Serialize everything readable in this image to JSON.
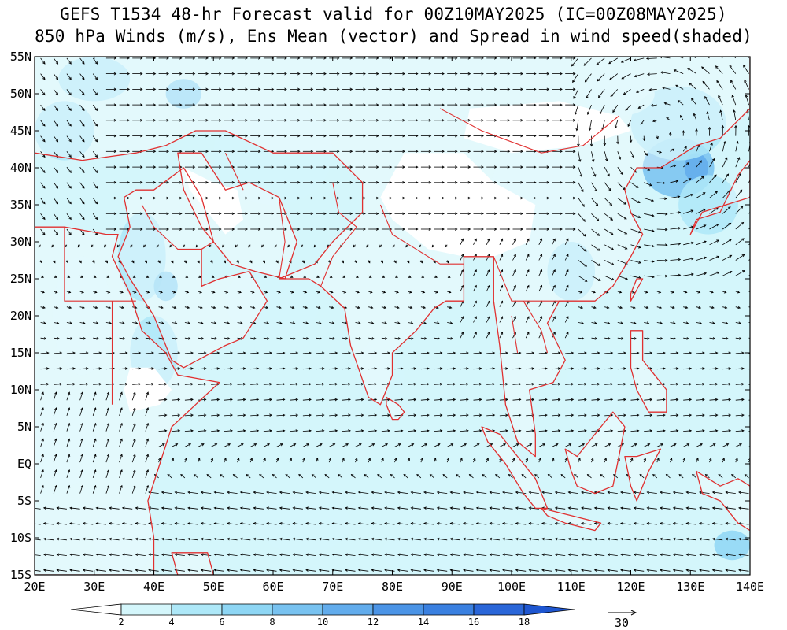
{
  "title_line1": "GEFS T1534 48-hr Forecast valid for 00Z10MAY2025 (IC=00Z08MAY2025)",
  "title_line2": "850 hPa Winds (m/s), Ens Mean (vector) and Spread in wind speed(shaded)",
  "map": {
    "lon_range": [
      20,
      140
    ],
    "lat_range": [
      -15,
      55
    ],
    "lon_labels": [
      {
        "lon": 20,
        "text": "20E"
      },
      {
        "lon": 30,
        "text": "30E"
      },
      {
        "lon": 40,
        "text": "40E"
      },
      {
        "lon": 50,
        "text": "50E"
      },
      {
        "lon": 60,
        "text": "60E"
      },
      {
        "lon": 70,
        "text": "70E"
      },
      {
        "lon": 80,
        "text": "80E"
      },
      {
        "lon": 90,
        "text": "90E"
      },
      {
        "lon": 100,
        "text": "100E"
      },
      {
        "lon": 110,
        "text": "110E"
      },
      {
        "lon": 120,
        "text": "120E"
      },
      {
        "lon": 130,
        "text": "130E"
      },
      {
        "lon": 140,
        "text": "140E"
      }
    ],
    "lat_labels": [
      {
        "lat": 55,
        "text": "55N"
      },
      {
        "lat": 50,
        "text": "50N"
      },
      {
        "lat": 45,
        "text": "45N"
      },
      {
        "lat": 40,
        "text": "40N"
      },
      {
        "lat": 35,
        "text": "35N"
      },
      {
        "lat": 30,
        "text": "30N"
      },
      {
        "lat": 25,
        "text": "25N"
      },
      {
        "lat": 20,
        "text": "20N"
      },
      {
        "lat": 15,
        "text": "15N"
      },
      {
        "lat": 10,
        "text": "10N"
      },
      {
        "lat": 5,
        "text": "5N"
      },
      {
        "lat": 0,
        "text": "EQ"
      },
      {
        "lat": -5,
        "text": "5S"
      },
      {
        "lat": -10,
        "text": "10S"
      },
      {
        "lat": -15,
        "text": "15S"
      }
    ],
    "coastline_color": "#e03030",
    "shaded_regions": [
      {
        "lon": 45,
        "lat": 50,
        "rlon": 3,
        "rlat": 2,
        "level": 3
      },
      {
        "lon": 30,
        "lat": 52,
        "rlon": 6,
        "rlat": 3,
        "level": 2
      },
      {
        "lon": 25,
        "lat": 45,
        "rlon": 5,
        "rlat": 4,
        "level": 2
      },
      {
        "lon": 38,
        "lat": 28,
        "rlon": 4,
        "rlat": 6,
        "level": 2
      },
      {
        "lon": 42,
        "lat": 24,
        "rlon": 2,
        "rlat": 2,
        "level": 3
      },
      {
        "lon": 28,
        "lat": 20,
        "rlon": 5,
        "rlat": 8,
        "level": 1
      },
      {
        "lon": 40,
        "lat": 15,
        "rlon": 4,
        "rlat": 5,
        "level": 2
      },
      {
        "lon": 25,
        "lat": 3,
        "rlon": 6,
        "rlat": 6,
        "level": 1
      },
      {
        "lon": 35,
        "lat": -10,
        "rlon": 5,
        "rlat": 5,
        "level": 1
      },
      {
        "lon": 60,
        "lat": 42,
        "rlon": 10,
        "rlat": 7,
        "level": 1
      },
      {
        "lon": 60,
        "lat": 22,
        "rlon": 8,
        "rlat": 5,
        "level": 1
      },
      {
        "lon": 78,
        "lat": 12,
        "rlon": 4,
        "rlat": 5,
        "level": 1
      },
      {
        "lon": 105,
        "lat": 35,
        "rlon": 9,
        "rlat": 9,
        "level": 1
      },
      {
        "lon": 110,
        "lat": 26,
        "rlon": 4,
        "rlat": 4,
        "level": 2
      },
      {
        "lon": 128,
        "lat": 40,
        "rlon": 6,
        "rlat": 4,
        "level": 4
      },
      {
        "lon": 131,
        "lat": 40,
        "rlon": 2,
        "rlat": 2,
        "level": 5
      },
      {
        "lon": 128,
        "lat": 46,
        "rlon": 8,
        "rlat": 5,
        "level": 2
      },
      {
        "lon": 133,
        "lat": 35,
        "rlon": 5,
        "rlat": 4,
        "level": 2
      },
      {
        "lon": 118,
        "lat": 50,
        "rlon": 6,
        "rlat": 3,
        "level": 1
      },
      {
        "lon": 137,
        "lat": -11,
        "rlon": 3,
        "rlat": 2,
        "level": 3
      },
      {
        "lon": 115,
        "lat": 10,
        "rlon": 6,
        "rlat": 6,
        "level": 1
      },
      {
        "lon": 88,
        "lat": -12,
        "rlon": 10,
        "rlat": 3,
        "level": 1
      },
      {
        "lon": 65,
        "lat": -8,
        "rlon": 8,
        "rlat": 4,
        "level": 1
      }
    ]
  },
  "colorbar": {
    "ticks": [
      "2",
      "4",
      "6",
      "8",
      "10",
      "12",
      "14",
      "16",
      "18"
    ],
    "colors": [
      "#ffffff",
      "#d4f6fb",
      "#aee8f8",
      "#8ed6f4",
      "#78c2f0",
      "#62acec",
      "#4b94e6",
      "#3a80e0",
      "#2a66d8",
      "#1e56d0"
    ]
  },
  "reference_vector_label": "30"
}
